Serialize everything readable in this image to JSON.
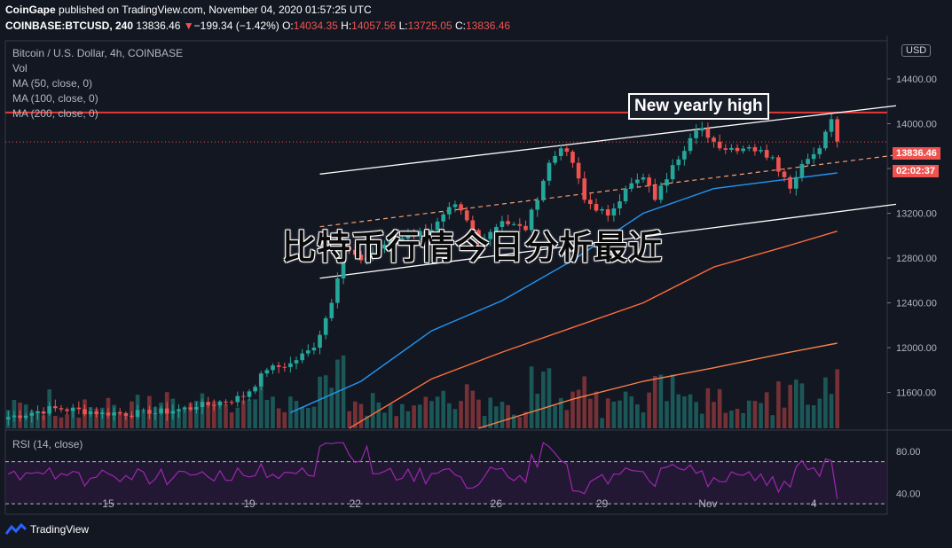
{
  "header": {
    "line1": {
      "publisher": "CoinGape",
      "rest": "published on TradingView.com, November 04, 2020 01:57:25 UTC"
    },
    "line2": {
      "symbol": "COINBASE:BTCUSD, 240",
      "last": "13836.46",
      "change": "−199.34 (−1.42%)",
      "o_label": "O:",
      "o": "14034.35",
      "h_label": "H:",
      "h": "14057.56",
      "l_label": "L:",
      "l": "13725.05",
      "c_label": "C:",
      "c": "13836.46"
    }
  },
  "legend": {
    "title": "Bitcoin / U.S. Dollar, 4h, COINBASE",
    "vol": "Vol",
    "ma50": "MA (50, close, 0)",
    "ma100": "MA (100, close, 0)",
    "ma200": "MA (200, close, 0)",
    "rsi": "RSI (14, close)"
  },
  "annotation": "New yearly high",
  "watermark": "比特币行情今日分析最近",
  "price_axis": {
    "currency": "USD",
    "last_price_tag": "13836.46",
    "countdown_tag": "02:02:37"
  },
  "footer": {
    "logo_text": "TradingView"
  },
  "colors": {
    "up": "#26a69a",
    "down": "#ef5350",
    "ma50": "#2196f3",
    "ma100": "#ff6d3a",
    "ma200": "#f7814a",
    "rsi": "#9c27b0",
    "resistance": "#e53935"
  },
  "chart_data": {
    "type": "candlestick",
    "timeframe": "4h",
    "x_tick_labels": [
      "15",
      "19",
      "22",
      "26",
      "29",
      "Nov",
      "4"
    ],
    "x_tick_bar_index": [
      17,
      41,
      59,
      83,
      101,
      119,
      137
    ],
    "y_tick_labels": [
      "11600.00",
      "12000.00",
      "12400.00",
      "12800.00",
      "13200.00",
      "13600.00",
      "14000.00",
      "14400.00"
    ],
    "ylim": [
      11280,
      14740
    ],
    "resistance_level": 14100,
    "last_price": 13836.46,
    "ohlc_close_anchors": [
      [
        0,
        11380
      ],
      [
        8,
        11460
      ],
      [
        16,
        11420
      ],
      [
        24,
        11410
      ],
      [
        32,
        11470
      ],
      [
        40,
        11560
      ],
      [
        44,
        11800
      ],
      [
        48,
        11860
      ],
      [
        52,
        12000
      ],
      [
        55,
        12400
      ],
      [
        57,
        12900
      ],
      [
        60,
        12780
      ],
      [
        64,
        12920
      ],
      [
        68,
        13000
      ],
      [
        72,
        13050
      ],
      [
        76,
        13280
      ],
      [
        80,
        12960
      ],
      [
        84,
        13130
      ],
      [
        88,
        13050
      ],
      [
        92,
        13650
      ],
      [
        94,
        13780
      ],
      [
        96,
        13650
      ],
      [
        98,
        13320
      ],
      [
        102,
        13180
      ],
      [
        105,
        13420
      ],
      [
        108,
        13520
      ],
      [
        110,
        13320
      ],
      [
        113,
        13630
      ],
      [
        116,
        13870
      ],
      [
        118,
        13960
      ],
      [
        121,
        13780
      ],
      [
        126,
        13790
      ],
      [
        130,
        13700
      ],
      [
        133,
        13420
      ],
      [
        135,
        13640
      ],
      [
        138,
        13780
      ],
      [
        140,
        14040
      ],
      [
        141,
        13840
      ]
    ],
    "volume_scale_note": "relative",
    "channel_upper": [
      [
        53,
        13550
      ],
      [
        151,
        14160
      ]
    ],
    "channel_lower": [
      [
        53,
        12620
      ],
      [
        151,
        13280
      ]
    ],
    "channel_mid": [
      [
        53,
        13080
      ],
      [
        151,
        13720
      ]
    ],
    "ma50": [
      [
        48,
        11420
      ],
      [
        60,
        11700
      ],
      [
        72,
        12150
      ],
      [
        84,
        12420
      ],
      [
        96,
        12780
      ],
      [
        108,
        13200
      ],
      [
        120,
        13420
      ],
      [
        132,
        13500
      ],
      [
        141,
        13560
      ]
    ],
    "ma100": [
      [
        58,
        11280
      ],
      [
        72,
        11720
      ],
      [
        84,
        11960
      ],
      [
        96,
        12180
      ],
      [
        108,
        12400
      ],
      [
        120,
        12720
      ],
      [
        132,
        12900
      ],
      [
        141,
        13040
      ]
    ],
    "ma200": [
      [
        80,
        11280
      ],
      [
        96,
        11540
      ],
      [
        108,
        11700
      ],
      [
        120,
        11820
      ],
      [
        132,
        11950
      ],
      [
        141,
        12040
      ]
    ],
    "rsi": {
      "ylim": [
        20,
        100
      ],
      "tick_labels": [
        "40.00",
        "80.00"
      ],
      "band": [
        30,
        70
      ]
    }
  }
}
